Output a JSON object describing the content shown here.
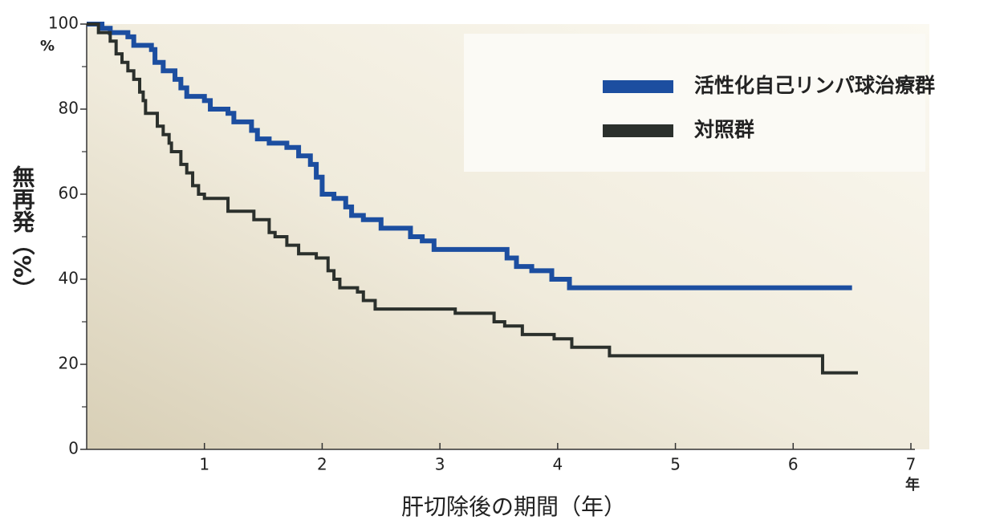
{
  "chart_data": {
    "type": "step",
    "y_label": "無再発（%）",
    "y_unit": "%",
    "x_label": "肝切除後の期間（年）",
    "x_unit": "年",
    "xlim": [
      0,
      7
    ],
    "xticks": [
      1,
      2,
      3,
      4,
      5,
      6,
      7
    ],
    "ylim": [
      0,
      100
    ],
    "yticks": [
      0,
      20,
      40,
      60,
      80,
      100
    ],
    "yminorticks": [
      10,
      30,
      50,
      70,
      90
    ],
    "legend": "upper right",
    "series": [
      {
        "name": "活性化自己リンパ球治療群",
        "color": "#1c4ea0",
        "x": [
          0,
          0.13,
          0.2,
          0.35,
          0.4,
          0.55,
          0.58,
          0.65,
          0.75,
          0.8,
          0.85,
          1.0,
          1.05,
          1.2,
          1.25,
          1.4,
          1.45,
          1.55,
          1.7,
          1.8,
          1.9,
          1.95,
          2.0,
          2.1,
          2.2,
          2.25,
          2.35,
          2.5,
          2.75,
          2.85,
          2.95,
          3.57,
          3.65,
          3.78,
          3.95,
          4.1,
          6.5
        ],
        "values": [
          100,
          99,
          98,
          97,
          95,
          94,
          91,
          89,
          87,
          85,
          83,
          82,
          80,
          79,
          77,
          75,
          73,
          72,
          71,
          69,
          67,
          64,
          60,
          59,
          57,
          55,
          54,
          52,
          50,
          49,
          47,
          45,
          43,
          42,
          40,
          38,
          38
        ]
      },
      {
        "name": "対照群",
        "color": "#2b302c",
        "x": [
          0,
          0.1,
          0.2,
          0.25,
          0.3,
          0.35,
          0.4,
          0.45,
          0.48,
          0.5,
          0.6,
          0.65,
          0.7,
          0.72,
          0.8,
          0.85,
          0.9,
          0.95,
          1.0,
          1.2,
          1.42,
          1.55,
          1.6,
          1.7,
          1.8,
          1.95,
          2.05,
          2.1,
          2.15,
          2.3,
          2.35,
          2.45,
          3.13,
          3.46,
          3.55,
          3.7,
          3.97,
          4.12,
          4.44,
          6.25,
          6.55
        ],
        "values": [
          100,
          98,
          96,
          93,
          91,
          89,
          87,
          84,
          82,
          79,
          76,
          74,
          72,
          70,
          67,
          65,
          62,
          60,
          59,
          56,
          54,
          51,
          50,
          48,
          46,
          45,
          42,
          40,
          38,
          37,
          35,
          33,
          32,
          30,
          29,
          27,
          26,
          24,
          22,
          18,
          18
        ]
      }
    ]
  }
}
